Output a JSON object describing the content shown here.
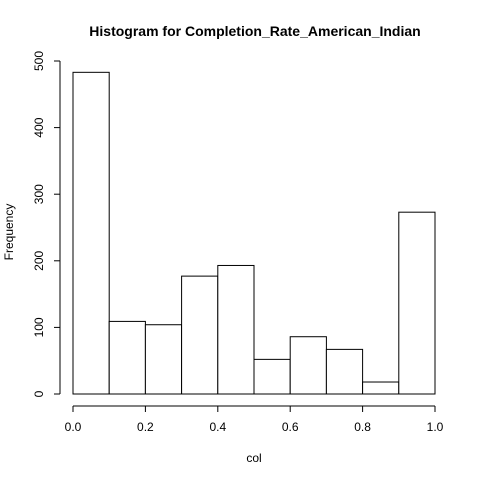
{
  "chart_data": {
    "type": "bar",
    "title": "Histogram for  Completion_Rate_American_Indian",
    "xlabel": "col",
    "ylabel": "Frequency",
    "bin_edges": [
      0.0,
      0.1,
      0.2,
      0.3,
      0.4,
      0.5,
      0.6,
      0.7,
      0.8,
      0.9,
      1.0
    ],
    "values": [
      483,
      109,
      104,
      177,
      193,
      52,
      86,
      67,
      18,
      273
    ],
    "xlim": [
      0.0,
      1.0
    ],
    "ylim": [
      0,
      500
    ],
    "xticks": [
      "0.0",
      "0.2",
      "0.4",
      "0.6",
      "0.8",
      "1.0"
    ],
    "yticks": [
      "0",
      "100",
      "200",
      "300",
      "400",
      "500"
    ],
    "grid": false,
    "bar_fill": "#ffffff",
    "bar_stroke": "#000000"
  }
}
